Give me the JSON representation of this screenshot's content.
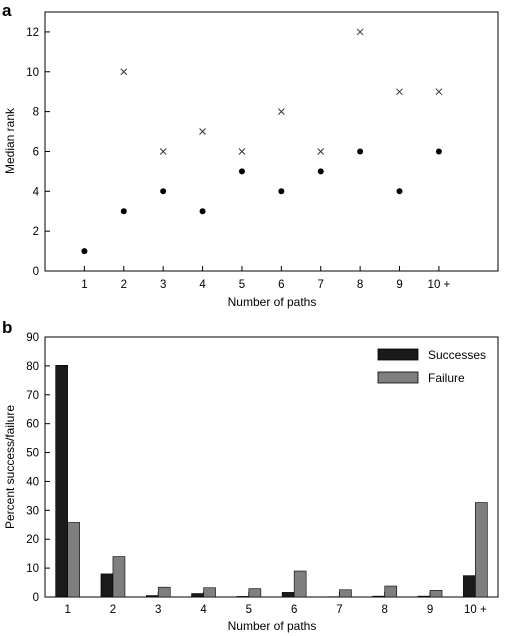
{
  "chart_data": [
    {
      "panel": "a",
      "type": "scatter",
      "title": "",
      "xlabel": "Number of paths",
      "ylabel": "Median rank",
      "categories": [
        "1",
        "2",
        "3",
        "4",
        "5",
        "6",
        "7",
        "8",
        "9",
        "10 +"
      ],
      "xlim": [
        0,
        11.5
      ],
      "ylim": [
        0,
        13
      ],
      "yticks": [
        0,
        2,
        4,
        6,
        8,
        10,
        12
      ],
      "grid": false,
      "legend": "none",
      "series": [
        {
          "marker": "dot",
          "values": [
            1,
            3,
            4,
            3,
            5,
            4,
            5,
            6,
            4,
            6
          ]
        },
        {
          "marker": "cross",
          "values": [
            null,
            10,
            6,
            7,
            6,
            8,
            6,
            12,
            9,
            9
          ]
        }
      ]
    },
    {
      "panel": "b",
      "type": "bar",
      "title": "",
      "xlabel": "Number of paths",
      "ylabel": "Percent success/failure",
      "categories": [
        "1",
        "2",
        "3",
        "4",
        "5",
        "6",
        "7",
        "8",
        "9",
        "10 +"
      ],
      "ylim": [
        0,
        90
      ],
      "yticks": [
        0,
        10,
        20,
        30,
        40,
        50,
        60,
        70,
        80,
        90
      ],
      "grid": false,
      "legend": "top-right",
      "series": [
        {
          "name": "Successes",
          "color": "#1a1a1a",
          "values": [
            80.2,
            8.0,
            0.5,
            1.2,
            0.2,
            1.6,
            0.1,
            0.3,
            0.3,
            7.4
          ]
        },
        {
          "name": "Failure",
          "color": "#7f7f7f",
          "values": [
            25.8,
            14.0,
            3.4,
            3.2,
            2.9,
            9.0,
            2.5,
            3.8,
            2.3,
            32.7
          ]
        }
      ]
    }
  ]
}
